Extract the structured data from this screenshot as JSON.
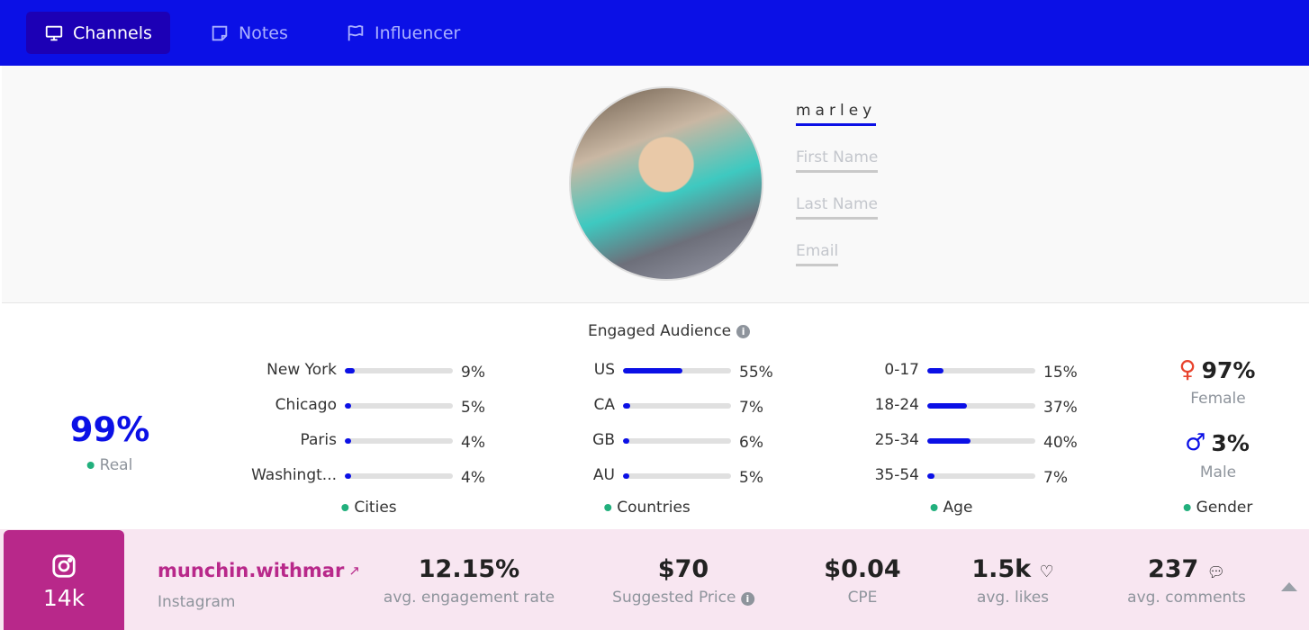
{
  "nav": {
    "tabs": [
      {
        "label": "Channels",
        "icon": "monitor-icon",
        "active": true
      },
      {
        "label": "Notes",
        "icon": "note-icon"
      },
      {
        "label": "Influencer",
        "icon": "flag-icon"
      }
    ]
  },
  "profile": {
    "username": "marley",
    "first_name_placeholder": "First Name",
    "last_name_placeholder": "Last Name",
    "email_placeholder": "Email"
  },
  "audience": {
    "title": "Engaged Audience",
    "real": {
      "value": "99%",
      "label": "Real"
    },
    "cities": {
      "label": "Cities",
      "rows": [
        {
          "name": "New York",
          "value": "9%",
          "pct": 9
        },
        {
          "name": "Chicago",
          "value": "5%",
          "pct": 5
        },
        {
          "name": "Paris",
          "value": "4%",
          "pct": 4
        },
        {
          "name": "Washingt...",
          "value": "4%",
          "pct": 4
        }
      ]
    },
    "countries": {
      "label": "Countries",
      "rows": [
        {
          "name": "US",
          "value": "55%",
          "pct": 55
        },
        {
          "name": "CA",
          "value": "7%",
          "pct": 7
        },
        {
          "name": "GB",
          "value": "6%",
          "pct": 6
        },
        {
          "name": "AU",
          "value": "5%",
          "pct": 5
        }
      ]
    },
    "age": {
      "label": "Age",
      "rows": [
        {
          "name": "0-17",
          "value": "15%",
          "pct": 15
        },
        {
          "name": "18-24",
          "value": "37%",
          "pct": 37
        },
        {
          "name": "25-34",
          "value": "40%",
          "pct": 40
        },
        {
          "name": "35-54",
          "value": "7%",
          "pct": 7
        }
      ]
    },
    "gender": {
      "label": "Gender",
      "female": {
        "value": "97%",
        "label": "Female"
      },
      "male": {
        "value": "3%",
        "label": "Male"
      }
    }
  },
  "channel": {
    "platform": "Instagram",
    "followers": "14k",
    "handle": "munchin.withmar",
    "metrics": [
      {
        "value": "12.15%",
        "label": "avg. engagement rate"
      },
      {
        "value": "$70",
        "label": "Suggested Price"
      },
      {
        "value": "$0.04",
        "label": "CPE"
      },
      {
        "value": "1.5k",
        "label": "avg. likes"
      },
      {
        "value": "237",
        "label": "avg. comments"
      }
    ]
  },
  "colors": {
    "accent": "#0b10e6",
    "instagram": "#b8288a",
    "dot": "#22b07d"
  }
}
